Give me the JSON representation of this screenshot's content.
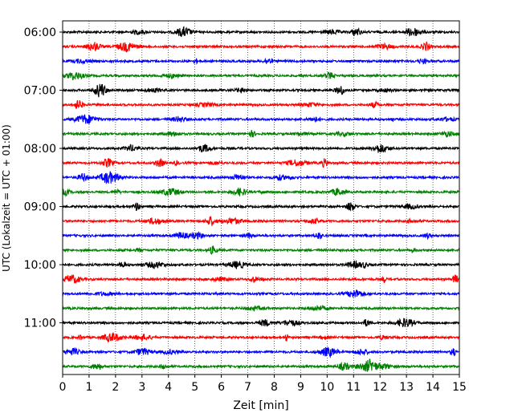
{
  "chart_data": {
    "type": "line",
    "title": "",
    "xlabel": "Zeit  [min]",
    "ylabel": "UTC (Lokalzeit = UTC + 01:00)",
    "xlim": [
      0,
      15
    ],
    "x_ticks": [
      0,
      1,
      2,
      3,
      4,
      5,
      6,
      7,
      8,
      9,
      10,
      11,
      12,
      13,
      14,
      15
    ],
    "y_tick_labels": [
      "06:00",
      "07:00",
      "08:00",
      "09:00",
      "10:00",
      "11:00"
    ],
    "grid": "vertical-dotted",
    "trace_minutes": 15,
    "start_time": "06:00",
    "end_time": "11:45",
    "colors_cycle": [
      "#000000",
      "#ff0000",
      "#0000ff",
      "#008000"
    ],
    "traces": [
      {
        "time": "06:00",
        "color": "#000000"
      },
      {
        "time": "06:15",
        "color": "#ff0000"
      },
      {
        "time": "06:30",
        "color": "#0000ff"
      },
      {
        "time": "06:45",
        "color": "#008000"
      },
      {
        "time": "07:00",
        "color": "#000000"
      },
      {
        "time": "07:15",
        "color": "#ff0000"
      },
      {
        "time": "07:30",
        "color": "#0000ff"
      },
      {
        "time": "07:45",
        "color": "#008000"
      },
      {
        "time": "08:00",
        "color": "#000000"
      },
      {
        "time": "08:15",
        "color": "#ff0000"
      },
      {
        "time": "08:30",
        "color": "#0000ff"
      },
      {
        "time": "08:45",
        "color": "#008000"
      },
      {
        "time": "09:00",
        "color": "#000000"
      },
      {
        "time": "09:15",
        "color": "#ff0000"
      },
      {
        "time": "09:30",
        "color": "#0000ff"
      },
      {
        "time": "09:45",
        "color": "#008000"
      },
      {
        "time": "10:00",
        "color": "#000000"
      },
      {
        "time": "10:15",
        "color": "#ff0000"
      },
      {
        "time": "10:30",
        "color": "#0000ff"
      },
      {
        "time": "10:45",
        "color": "#008000"
      },
      {
        "time": "11:00",
        "color": "#000000"
      },
      {
        "time": "11:15",
        "color": "#ff0000"
      },
      {
        "time": "11:30",
        "color": "#0000ff"
      },
      {
        "time": "11:45",
        "color": "#008000"
      }
    ]
  }
}
